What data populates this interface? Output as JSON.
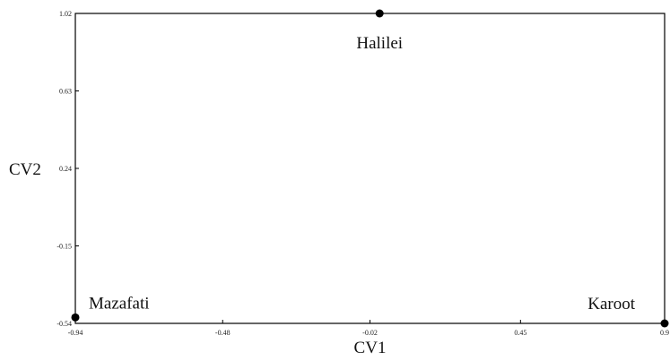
{
  "chart_data": {
    "type": "scatter",
    "title": "",
    "xlabel": "CV1",
    "ylabel": "CV2",
    "xlim": [
      -0.94,
      0.9
    ],
    "ylim": [
      -0.54,
      1.02
    ],
    "x_ticks": [
      "-0.94",
      "-0.48",
      "-0.02",
      "0.45",
      "0.9"
    ],
    "y_ticks": [
      "1.02",
      "0.63",
      "0.24",
      "-0.15",
      "-0.54"
    ],
    "grid": false,
    "legend": "none",
    "marker_color": "#000000",
    "points": [
      {
        "label": "Halilei",
        "x": 0.01,
        "y": 1.02
      },
      {
        "label": "Mazafati",
        "x": -0.94,
        "y": -0.51
      },
      {
        "label": "Karoot",
        "x": 0.9,
        "y": -0.54
      }
    ]
  }
}
